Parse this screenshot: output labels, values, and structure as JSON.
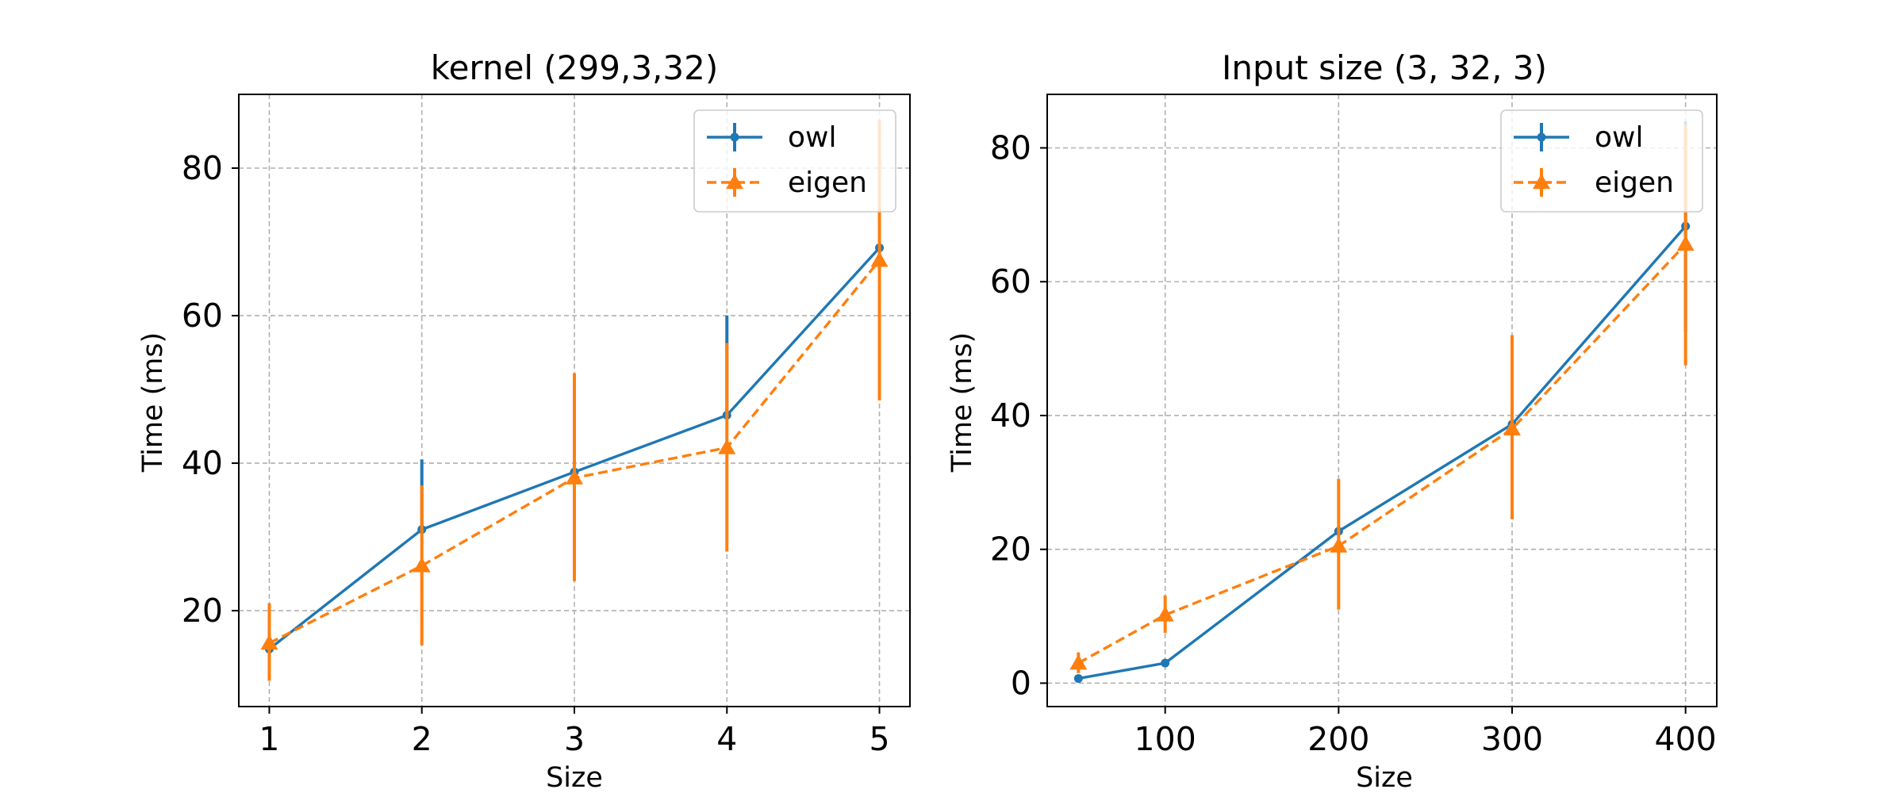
{
  "colors": {
    "owl": "#1f77b4",
    "eigen": "#ff7f0e"
  },
  "chart_data": [
    {
      "type": "line",
      "title": "kernel (299,3,32)",
      "xlabel": "Size",
      "ylabel": "Time (ms)",
      "xlim": [
        0.8,
        5.2
      ],
      "ylim": [
        7,
        90
      ],
      "xticks": [
        1,
        2,
        3,
        4,
        5
      ],
      "yticks": [
        20,
        40,
        60,
        80
      ],
      "grid": true,
      "legend_position": "top-right",
      "x": [
        1,
        2,
        3,
        4,
        5
      ],
      "series": [
        {
          "name": "owl",
          "style": "solid",
          "marker": "circle",
          "values": [
            14.8,
            31,
            38.8,
            46.5,
            69.2
          ],
          "err_low": [
            14.8,
            31,
            38.8,
            46.5,
            69.2
          ],
          "err_high": [
            14.8,
            40.5,
            38.8,
            60,
            69.2
          ]
        },
        {
          "name": "eigen",
          "style": "dashed",
          "marker": "triangle",
          "values": [
            15.6,
            26.1,
            38,
            42.1,
            67.5
          ],
          "err_low": [
            10.5,
            15.3,
            24,
            28,
            48.5
          ],
          "err_high": [
            21,
            37,
            52.2,
            56.3,
            86.5
          ]
        }
      ]
    },
    {
      "type": "line",
      "title": "Input size (3, 32, 3)",
      "xlabel": "Size",
      "ylabel": "Time (ms)",
      "xlim": [
        32,
        418
      ],
      "ylim": [
        -3.5,
        88
      ],
      "xticks": [
        100,
        200,
        300,
        400
      ],
      "yticks": [
        0,
        20,
        40,
        60,
        80
      ],
      "grid": true,
      "legend_position": "top-right",
      "x": [
        50,
        100,
        200,
        300,
        400
      ],
      "series": [
        {
          "name": "owl",
          "style": "solid",
          "marker": "circle",
          "values": [
            0.7,
            3,
            22.7,
            38.7,
            68.3
          ],
          "err_low": [
            0.7,
            3,
            22.7,
            38.7,
            52.5
          ],
          "err_high": [
            0.7,
            3,
            22.7,
            38.7,
            84
          ]
        },
        {
          "name": "eigen",
          "style": "dashed",
          "marker": "triangle",
          "values": [
            3,
            10.2,
            20.5,
            38,
            65.6
          ],
          "err_low": [
            1.5,
            7.5,
            11,
            24.5,
            47.5
          ],
          "err_high": [
            4.6,
            13.1,
            30.5,
            52,
            83.5
          ]
        }
      ]
    }
  ]
}
